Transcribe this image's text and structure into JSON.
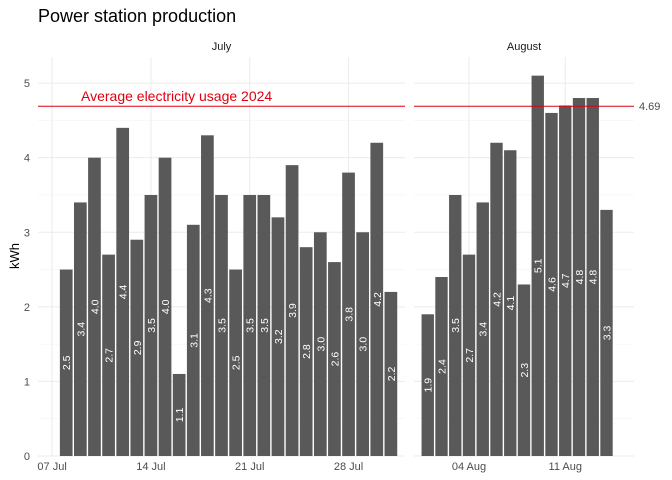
{
  "chart_data": {
    "type": "bar",
    "title": "Power station production",
    "ylabel": "kWh",
    "xlabel": "",
    "ylim": [
      0,
      5.35
    ],
    "yticks": [
      0,
      1,
      2,
      3,
      4,
      5
    ],
    "grid": true,
    "bar_color": "#595959",
    "reference_line": {
      "value": 4.69,
      "value_label": "4.69",
      "label": "Average electricity usage 2024",
      "color": "#e0000f"
    },
    "facets": [
      {
        "name": "July",
        "x_start": "2024-07-08",
        "x_end": "2024-07-31",
        "x_domain": [
          "2024-07-06",
          "2024-08-01"
        ],
        "x_ticks": [
          {
            "date": "2024-07-07",
            "label": "07 Jul"
          },
          {
            "date": "2024-07-14",
            "label": "14 Jul"
          },
          {
            "date": "2024-07-21",
            "label": "21 Jul"
          },
          {
            "date": "2024-07-28",
            "label": "28 Jul"
          }
        ],
        "values": [
          2.5,
          3.4,
          4.0,
          2.7,
          4.4,
          2.9,
          3.5,
          4.0,
          1.1,
          3.1,
          4.3,
          3.5,
          2.5,
          3.5,
          3.5,
          3.2,
          3.9,
          2.8,
          3.0,
          2.6,
          3.8,
          3.0,
          4.2,
          2.2
        ],
        "labels": [
          "2.5",
          "3.4",
          "4.0",
          "2.7",
          "4.4",
          "2.9",
          "3.5",
          "4.0",
          "1.1",
          "3.1",
          "4.3",
          "3.5",
          "2.5",
          "3.5",
          "3.5",
          "3.2",
          "3.9",
          "2.8",
          "3.0",
          "2.6",
          "3.8",
          "3.0",
          "4.2",
          "2.2"
        ]
      },
      {
        "name": "August",
        "x_start": "2024-08-01",
        "x_end": "2024-08-15",
        "x_domain": [
          "2024-07-31",
          "2024-08-16"
        ],
        "x_ticks": [
          {
            "date": "2024-08-04",
            "label": "04 Aug"
          },
          {
            "date": "2024-08-11",
            "label": "11 Aug"
          }
        ],
        "values": [
          1.9,
          2.4,
          3.5,
          2.7,
          3.4,
          4.2,
          4.1,
          2.3,
          5.1,
          4.6,
          4.7,
          4.8,
          4.8,
          3.3
        ],
        "labels": [
          "1.9",
          "2.4",
          "3.5",
          "2.7",
          "3.4",
          "4.2",
          "4.1",
          "2.3",
          "5.1",
          "4.6",
          "4.7",
          "4.8",
          "4.8",
          "3.3"
        ]
      }
    ]
  }
}
